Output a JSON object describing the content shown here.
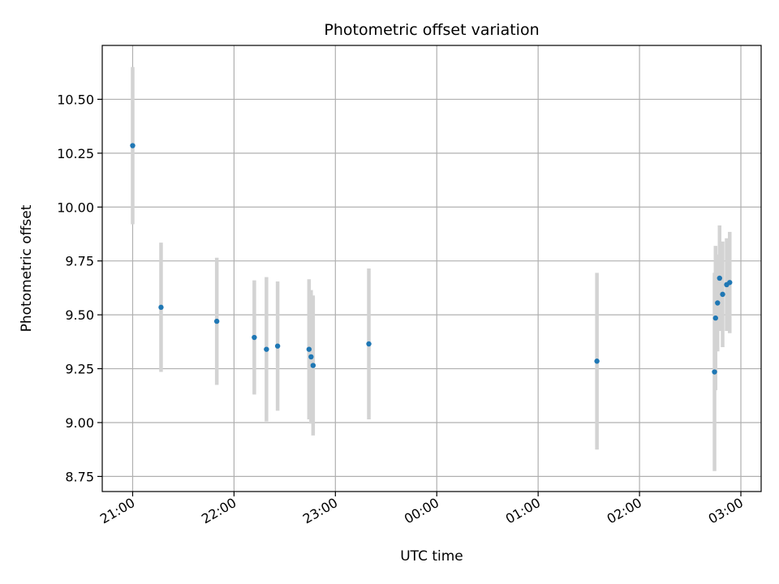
{
  "chart_data": {
    "type": "scatter",
    "title": "Photometric offset variation",
    "xlabel": "UTC time",
    "ylabel": "Photometric offset",
    "x_ticks": [
      "21:00",
      "22:00",
      "23:00",
      "00:00",
      "01:00",
      "02:00",
      "03:00"
    ],
    "y_ticks": [
      "8.75",
      "9.00",
      "9.25",
      "9.50",
      "9.75",
      "10.00",
      "10.25",
      "10.50"
    ],
    "x_unit": "UTC time (hours since 21:00)",
    "xlim": [
      -0.3,
      6.2
    ],
    "ylim": [
      8.68,
      10.75
    ],
    "grid": true,
    "series": [
      {
        "marker_color": "#1f77b4",
        "errorbar_color": "#d3d3d3",
        "points": [
          {
            "x": 0.0,
            "y": 10.285,
            "err": 0.365
          },
          {
            "x": 0.28,
            "y": 9.535,
            "err": 0.3
          },
          {
            "x": 0.83,
            "y": 9.47,
            "err": 0.295
          },
          {
            "x": 1.2,
            "y": 9.395,
            "err": 0.265
          },
          {
            "x": 1.32,
            "y": 9.34,
            "err": 0.335
          },
          {
            "x": 1.43,
            "y": 9.355,
            "err": 0.3
          },
          {
            "x": 1.74,
            "y": 9.34,
            "err": 0.325
          },
          {
            "x": 1.76,
            "y": 9.305,
            "err": 0.31
          },
          {
            "x": 1.78,
            "y": 9.265,
            "err": 0.325
          },
          {
            "x": 2.33,
            "y": 9.365,
            "err": 0.35
          },
          {
            "x": 4.58,
            "y": 9.285,
            "err": 0.41
          },
          {
            "x": 5.74,
            "y": 9.235,
            "err": 0.46
          },
          {
            "x": 5.75,
            "y": 9.485,
            "err": 0.335
          },
          {
            "x": 5.77,
            "y": 9.555,
            "err": 0.225
          },
          {
            "x": 5.79,
            "y": 9.67,
            "err": 0.245
          },
          {
            "x": 5.82,
            "y": 9.595,
            "err": 0.245
          },
          {
            "x": 5.86,
            "y": 9.64,
            "err": 0.215
          },
          {
            "x": 5.89,
            "y": 9.65,
            "err": 0.235
          }
        ]
      }
    ]
  }
}
